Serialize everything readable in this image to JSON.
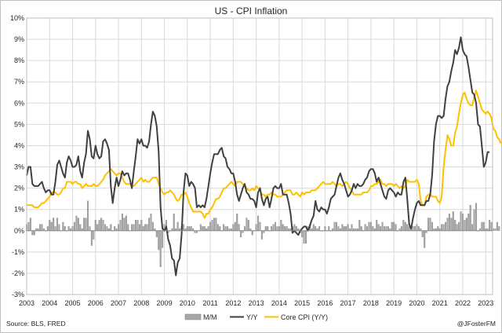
{
  "chart_data": {
    "type": "line",
    "title": "US - CPI Inflation",
    "xlabel": "",
    "ylabel": "",
    "x_start": 2003.0,
    "x_end": 2023.0,
    "x_step": 0.0833333,
    "xlim": [
      2003,
      2023.3
    ],
    "ylim": [
      -3,
      10
    ],
    "ytick_values": [
      -3,
      -2,
      -1,
      0,
      1,
      2,
      3,
      4,
      5,
      6,
      7,
      8,
      9,
      10
    ],
    "ytick_labels": [
      "-3%",
      "-2%",
      "-1%",
      "0%",
      "1%",
      "2%",
      "3%",
      "4%",
      "5%",
      "6%",
      "7%",
      "8%",
      "9%",
      "10%"
    ],
    "xtick_values": [
      2003,
      2004,
      2005,
      2006,
      2007,
      2008,
      2009,
      2010,
      2011,
      2012,
      2013,
      2014,
      2015,
      2016,
      2017,
      2018,
      2019,
      2020,
      2021,
      2022,
      2023
    ],
    "xtick_labels": [
      "2003",
      "2004",
      "2005",
      "2006",
      "2007",
      "2008",
      "2009",
      "2010",
      "2011",
      "2012",
      "2013",
      "2014",
      "2015",
      "2016",
      "2017",
      "2018",
      "2019",
      "2020",
      "2021",
      "2022",
      "2023"
    ],
    "grid": true,
    "legend_position": "bottom",
    "series": [
      {
        "name": "M/M",
        "kind": "bar",
        "color": "#a6a6a6",
        "values": [
          0.3,
          0.4,
          0.6,
          -0.2,
          -0.2,
          0.1,
          0.1,
          0.3,
          0.3,
          0.1,
          0.0,
          0.2,
          0.5,
          0.4,
          0.6,
          0.2,
          0.6,
          0.3,
          0.0,
          0.4,
          0.2,
          0.0,
          0.2,
          0.1,
          0.2,
          0.4,
          0.7,
          0.6,
          0.3,
          0.1,
          0.6,
          0.6,
          1.4,
          0.2,
          -0.7,
          -0.4,
          0.5,
          0.3,
          0.5,
          0.6,
          0.5,
          0.3,
          0.2,
          0.1,
          0.3,
          0.0,
          0.2,
          0.1,
          0.3,
          0.5,
          0.8,
          0.6,
          0.7,
          0.3,
          0.0,
          0.3,
          0.3,
          0.5,
          0.5,
          0.3,
          0.5,
          0.2,
          0.3,
          0.3,
          0.6,
          0.8,
          0.4,
          0.1,
          -0.3,
          -0.9,
          -1.7,
          -0.8,
          0.3,
          0.5,
          -0.1,
          0.0,
          0.1,
          0.8,
          0.1,
          0.4,
          0.1,
          0.2,
          0.3,
          0.1,
          0.2,
          0.2,
          0.2,
          0.1,
          -0.1,
          -0.1,
          0.0,
          0.3,
          0.2,
          0.2,
          0.1,
          0.2,
          0.4,
          0.5,
          0.6,
          0.6,
          0.3,
          0.2,
          0.0,
          0.3,
          0.2,
          0.2,
          0.1,
          0.1,
          0.3,
          0.4,
          0.8,
          0.3,
          -0.3,
          -0.1,
          0.2,
          0.6,
          0.5,
          0.1,
          -0.2,
          0.0,
          0.3,
          0.7,
          0.4,
          -0.4,
          -0.1,
          0.2,
          0.2,
          0.0,
          0.2,
          0.3,
          0.4,
          0.2,
          0.2,
          0.5,
          0.3,
          0.2,
          0.2,
          0.1,
          0.1,
          0.2,
          0.3,
          0.2,
          0.1,
          -0.1,
          -0.3,
          -0.6,
          -0.6,
          0.2,
          0.3,
          0.1,
          0.3,
          0.2,
          0.1,
          0.2,
          0.0,
          0.0,
          0.2,
          0.0,
          0.2,
          0.0,
          0.1,
          0.4,
          0.4,
          0.2,
          0.1,
          0.3,
          0.2,
          0.2,
          0.3,
          0.1,
          0.3,
          0.1,
          0.1,
          0.1,
          0.5,
          0.2,
          0.0,
          0.3,
          0.2,
          0.4,
          0.4,
          0.2,
          0.1,
          0.5,
          0.3,
          0.2,
          0.4,
          0.2,
          0.2,
          0.2,
          0.1,
          0.4,
          0.4,
          0.3,
          0.0,
          0.1,
          0.2,
          0.5,
          0.4,
          0.3,
          0.2,
          0.1,
          0.2,
          0.2,
          0.3,
          0.2,
          0.1,
          -0.3,
          -0.8,
          -0.1,
          0.6,
          0.6,
          0.4,
          0.1,
          0.1,
          0.2,
          0.1,
          0.3,
          0.3,
          0.4,
          0.6,
          0.8,
          0.6,
          0.9,
          0.5,
          0.3,
          0.4,
          0.9,
          0.8,
          0.5,
          0.6,
          0.8,
          1.2,
          0.3,
          1.0,
          1.3,
          0.0,
          0.1,
          0.4,
          0.4,
          0.1,
          0.1,
          0.5,
          0.4,
          0.1,
          0.1,
          0.4,
          0.2
        ]
      },
      {
        "name": "Y/Y",
        "kind": "line",
        "color": "#404040",
        "values": [
          2.6,
          3.0,
          3.0,
          2.2,
          2.1,
          2.1,
          2.1,
          2.2,
          2.3,
          2.0,
          1.8,
          1.9,
          1.9,
          1.7,
          1.7,
          2.3,
          3.1,
          3.3,
          3.0,
          2.7,
          2.5,
          3.2,
          3.5,
          3.3,
          3.0,
          3.0,
          3.1,
          3.5,
          2.8,
          2.5,
          3.2,
          3.6,
          4.7,
          4.3,
          3.5,
          3.4,
          4.0,
          3.6,
          3.4,
          3.5,
          4.2,
          4.3,
          4.1,
          3.8,
          2.1,
          1.3,
          2.0,
          2.5,
          2.1,
          2.4,
          2.8,
          2.6,
          2.7,
          2.7,
          2.4,
          2.0,
          2.8,
          3.5,
          4.3,
          4.1,
          4.3,
          4.0,
          4.0,
          3.9,
          4.2,
          5.0,
          5.6,
          5.4,
          4.9,
          3.7,
          1.1,
          0.1,
          0.0,
          0.2,
          -0.4,
          -0.7,
          -1.3,
          -1.4,
          -2.1,
          -1.5,
          -1.3,
          -0.2,
          1.8,
          2.7,
          2.6,
          2.1,
          2.3,
          2.2,
          2.0,
          1.1,
          1.2,
          1.1,
          1.2,
          1.1,
          1.5,
          2.1,
          2.7,
          3.2,
          3.6,
          3.6,
          3.6,
          3.8,
          3.9,
          3.5,
          3.4,
          3.0,
          2.9,
          2.7,
          2.7,
          2.3,
          1.7,
          1.4,
          1.7,
          2.0,
          2.2,
          1.8,
          1.7,
          1.5,
          1.5,
          1.4,
          1.1,
          1.8,
          2.0,
          1.5,
          1.2,
          1.5,
          1.6,
          1.1,
          1.5,
          2.0,
          2.1,
          2.0,
          2.0,
          2.2,
          1.7,
          1.7,
          1.7,
          1.3,
          0.8,
          -0.1,
          0.0,
          -0.1,
          -0.2,
          0.0,
          0.1,
          0.2,
          0.2,
          0.0,
          0.2,
          0.5,
          0.7,
          1.4,
          1.0,
          0.9,
          1.1,
          1.0,
          1.0,
          0.8,
          1.1,
          1.5,
          1.6,
          1.7,
          2.1,
          2.5,
          2.7,
          2.4,
          2.2,
          1.9,
          1.6,
          1.7,
          1.9,
          2.2,
          2.0,
          2.2,
          2.1,
          2.1,
          2.2,
          2.4,
          2.5,
          2.8,
          2.9,
          2.9,
          2.7,
          2.3,
          2.5,
          2.2,
          1.9,
          1.6,
          1.5,
          1.9,
          2.0,
          1.9,
          1.8,
          1.6,
          1.8,
          1.7,
          1.7,
          2.3,
          2.5,
          1.5,
          0.3,
          0.1,
          0.6,
          1.0,
          1.3,
          1.4,
          1.2,
          1.2,
          1.2,
          1.4,
          1.4,
          1.7,
          2.6,
          4.2,
          5.0,
          5.4,
          5.4,
          5.3,
          5.4,
          6.2,
          6.8,
          7.0,
          7.5,
          7.9,
          8.5,
          8.3,
          8.6,
          9.1,
          8.5,
          8.3,
          8.2,
          7.7,
          7.1,
          6.5,
          6.4,
          6.0,
          5.0,
          4.9,
          4.0,
          3.0,
          3.2,
          3.7,
          3.7
        ]
      },
      {
        "name": "Core CPI (Y/Y)",
        "kind": "line",
        "color": "#ffc000",
        "values": [
          1.2,
          1.2,
          1.2,
          1.2,
          1.1,
          1.1,
          1.1,
          1.2,
          1.3,
          1.3,
          1.4,
          1.5,
          1.6,
          1.8,
          1.8,
          1.8,
          1.7,
          1.7,
          1.8,
          2.0,
          2.0,
          2.3,
          2.3,
          2.3,
          2.2,
          2.3,
          2.3,
          2.2,
          2.2,
          2.0,
          2.1,
          2.2,
          2.1,
          2.1,
          2.1,
          2.2,
          2.1,
          2.1,
          2.2,
          2.3,
          2.4,
          2.6,
          2.7,
          2.8,
          2.9,
          2.8,
          2.7,
          2.6,
          2.7,
          2.7,
          2.5,
          2.3,
          2.2,
          2.2,
          2.2,
          2.1,
          2.1,
          2.2,
          2.3,
          2.4,
          2.5,
          2.3,
          2.4,
          2.3,
          2.3,
          2.4,
          2.5,
          2.5,
          2.5,
          2.2,
          2.0,
          1.8,
          1.7,
          1.8,
          1.8,
          1.9,
          1.8,
          1.7,
          1.5,
          1.4,
          1.5,
          1.7,
          1.7,
          1.8,
          1.6,
          1.3,
          1.1,
          0.9,
          0.9,
          0.9,
          0.9,
          0.9,
          0.8,
          0.6,
          0.8,
          0.8,
          1.0,
          1.1,
          1.3,
          1.5,
          1.5,
          1.6,
          1.8,
          2.0,
          2.0,
          2.1,
          2.2,
          2.3,
          2.2,
          2.1,
          2.3,
          2.3,
          2.3,
          2.2,
          2.1,
          2.0,
          1.9,
          1.9,
          2.0,
          1.9,
          2.1,
          2.0,
          1.9,
          1.7,
          1.7,
          1.6,
          1.7,
          1.7,
          1.8,
          1.7,
          1.7,
          1.6,
          1.6,
          1.6,
          1.7,
          1.8,
          1.9,
          1.9,
          1.9,
          1.7,
          1.7,
          1.8,
          1.7,
          1.6,
          1.8,
          1.7,
          1.8,
          1.8,
          1.8,
          1.9,
          1.9,
          1.9,
          2.0,
          2.1,
          2.2,
          2.3,
          2.2,
          2.2,
          2.2,
          2.2,
          2.3,
          2.2,
          2.1,
          2.2,
          2.2,
          2.1,
          2.2,
          2.3,
          2.2,
          2.0,
          1.9,
          1.7,
          1.7,
          1.7,
          1.7,
          1.7,
          1.8,
          1.8,
          1.8,
          1.9,
          2.1,
          2.1,
          2.2,
          2.2,
          2.3,
          2.4,
          2.2,
          2.2,
          2.1,
          2.2,
          2.2,
          2.2,
          2.1,
          2.2,
          2.1,
          2.0,
          2.1,
          2.0,
          2.1,
          2.4,
          2.3,
          2.3,
          2.3,
          2.3,
          2.4,
          2.2,
          1.4,
          1.2,
          1.2,
          1.6,
          1.7,
          1.7,
          1.6,
          1.6,
          1.6,
          1.4,
          1.3,
          1.6,
          3.0,
          3.8,
          4.5,
          4.3,
          4.0,
          4.0,
          4.6,
          4.9,
          5.5,
          6.0,
          6.4,
          6.5,
          6.2,
          6.0,
          5.9,
          5.9,
          6.3,
          6.6,
          6.3,
          6.0,
          5.7,
          5.6,
          5.5,
          5.6,
          5.5,
          5.3,
          4.8,
          4.7,
          4.4,
          4.3,
          4.1
        ]
      }
    ]
  },
  "footer": {
    "source": "Source: BLS, FRED",
    "handle": "@JFosterFM"
  }
}
